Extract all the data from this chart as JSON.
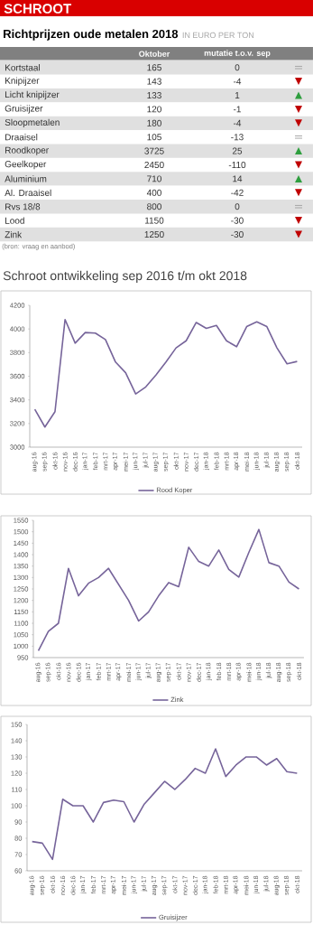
{
  "chart_data": [
    {
      "type": "other",
      "title": "Richtprijzen oude metalen 2018",
      "subtitle": "IN EURO PER TON",
      "annotations": [
        "SCHROOT",
        "(bron: vraag en aanbod)"
      ],
      "categories": [
        "Kortstaal",
        "Knipijzer",
        "Licht knipijzer",
        "Gruisijzer",
        "Sloopmetalen",
        "Draaisel",
        "Roodkoper",
        "Geelkoper",
        "Aluminium",
        "Al. Draaisel",
        "Rvs 18/8",
        "Lood",
        "Zink"
      ],
      "series": [
        {
          "name": "Oktober",
          "values": [
            165,
            143,
            133,
            120,
            180,
            105,
            3725,
            2450,
            710,
            400,
            800,
            1150,
            1250
          ]
        },
        {
          "name": "mutatie t.o.v. sep",
          "values": [
            0,
            -4,
            1,
            -1,
            -4,
            -13,
            25,
            -110,
            14,
            -42,
            0,
            -30,
            -30
          ],
          "colors": [
            "#a6a6a6",
            "#c00000",
            "#2e9e3e",
            "#c00000",
            "#c00000",
            "#a6a6a6",
            "#2e9e3e",
            "#c00000",
            "#2e9e3e",
            "#c00000",
            "#a6a6a6",
            "#c00000",
            "#c00000"
          ]
        }
      ],
      "data_labels": true
    },
    {
      "type": "line",
      "title": "Schroot ontwikkeling sep 2016 t/m okt 2018",
      "categories": [
        "aug-16",
        "sep-16",
        "okt-16",
        "nov-16",
        "dec-16",
        "jan-17",
        "feb-17",
        "mrt-17",
        "apr-17",
        "mei-17",
        "jun-17",
        "jul-17",
        "aug-17",
        "sep-17",
        "okt-17",
        "nov-17",
        "dec-17",
        "jan-18",
        "feb-18",
        "mrt-18",
        "apr-18",
        "mei-18",
        "jun-18",
        "jul-18",
        "aug-18",
        "sep-18",
        "okt-18"
      ],
      "series": [
        {
          "name": "Rood Koper",
          "color": "#76649a",
          "values": [
            3320,
            3170,
            3300,
            4080,
            3880,
            3970,
            3965,
            3910,
            3720,
            3630,
            3450,
            3510,
            3610,
            3720,
            3840,
            3900,
            4055,
            4005,
            4030,
            3900,
            3850,
            4020,
            4060,
            4020,
            3840,
            3705,
            3725
          ]
        }
      ],
      "ylim": [
        3000,
        4200
      ],
      "yticks": [
        3000,
        3200,
        3400,
        3600,
        3800,
        4000,
        4200
      ],
      "legend": "bottom"
    },
    {
      "type": "line",
      "categories": [
        "aug-16",
        "sep-16",
        "okt-16",
        "nov-16",
        "dec-16",
        "jan-17",
        "feb-17",
        "mrt-17",
        "apr-17",
        "mei-17",
        "jun-17",
        "jul-17",
        "aug-17",
        "sep-17",
        "okt-17",
        "nov-17",
        "dec-17",
        "jan-18",
        "feb-18",
        "mrt-18",
        "apr-18",
        "mei-18",
        "jun-18",
        "jul-18",
        "aug-18",
        "sep-18",
        "okt-18"
      ],
      "series": [
        {
          "name": "Zink",
          "color": "#76649a",
          "values": [
            980,
            1065,
            1100,
            1340,
            1220,
            1275,
            1300,
            1340,
            1270,
            1200,
            1110,
            1150,
            1220,
            1278,
            1260,
            1432,
            1370,
            1350,
            1420,
            1335,
            1302,
            1410,
            1510,
            1365,
            1350,
            1280,
            1250
          ]
        }
      ],
      "ylim": [
        950,
        1550
      ],
      "yticks": [
        950,
        1000,
        1050,
        1100,
        1150,
        1200,
        1250,
        1300,
        1350,
        1400,
        1450,
        1500,
        1550
      ],
      "legend": "bottom"
    },
    {
      "type": "line",
      "categories": [
        "aug-16",
        "sep-16",
        "okt-16",
        "nov-16",
        "dec-16",
        "jan-17",
        "feb-17",
        "mrt-17",
        "apr-17",
        "mei-17",
        "jun-17",
        "jul-17",
        "aug-17",
        "sep-17",
        "okt-17",
        "nov-17",
        "dec-17",
        "jan-18",
        "feb-18",
        "mrt-18",
        "apr-18",
        "mei-18",
        "jun-18",
        "jul-18",
        "aug-18",
        "sep-18",
        "okt-18"
      ],
      "series": [
        {
          "name": "Gruisijzer",
          "color": "#76649a",
          "values": [
            78,
            77,
            67,
            104,
            100,
            100,
            90,
            102,
            103.5,
            102.5,
            90,
            101,
            108,
            115,
            110,
            116,
            123,
            120,
            135,
            118,
            125,
            130,
            130,
            125,
            129,
            121,
            120
          ]
        }
      ],
      "ylim": [
        60,
        150
      ],
      "yticks": [
        60,
        70,
        80,
        90,
        100,
        110,
        120,
        130,
        140,
        150
      ],
      "legend": "bottom"
    }
  ]
}
